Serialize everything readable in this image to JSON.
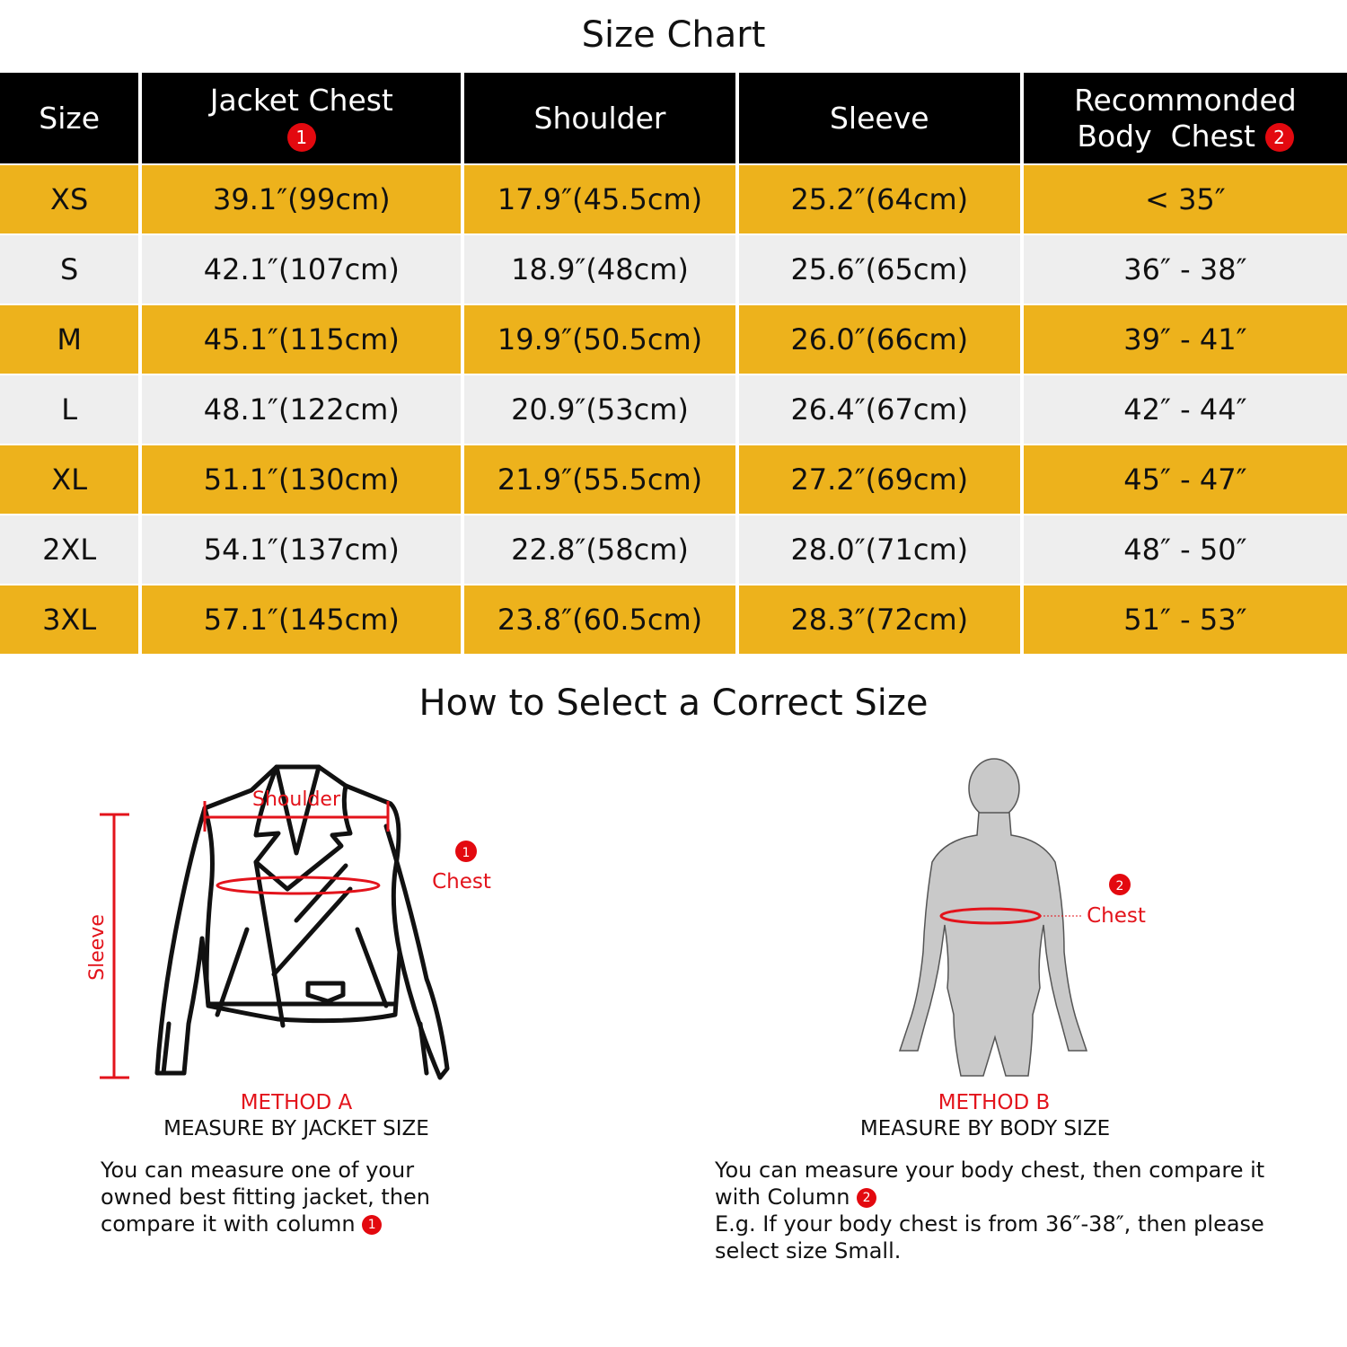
{
  "title": "Size Chart",
  "table": {
    "headers": [
      "Size",
      "Jacket Chest",
      "Shoulder",
      "Sleeve",
      "Recommonded Body  Chest"
    ],
    "header_badges": {
      "jacket_chest": "1",
      "body_chest": "2"
    },
    "rows": [
      [
        "XS",
        "39.1″(99cm)",
        "17.9″(45.5cm)",
        "25.2″(64cm)",
        "< 35″"
      ],
      [
        "S",
        "42.1″(107cm)",
        "18.9″(48cm)",
        "25.6″(65cm)",
        "36″ - 38″"
      ],
      [
        "M",
        "45.1″(115cm)",
        "19.9″(50.5cm)",
        "26.0″(66cm)",
        "39″ - 41″"
      ],
      [
        "L",
        "48.1″(122cm)",
        "20.9″(53cm)",
        "26.4″(67cm)",
        "42″ - 44″"
      ],
      [
        "XL",
        "51.1″(130cm)",
        "21.9″(55.5cm)",
        "27.2″(69cm)",
        "45″ - 47″"
      ],
      [
        "2XL",
        "54.1″(137cm)",
        "22.8″(58cm)",
        "28.0″(71cm)",
        "48″ - 50″"
      ],
      [
        "3XL",
        "57.1″(145cm)",
        "23.8″(60.5cm)",
        "28.3″(72cm)",
        "51″ - 53″"
      ]
    ]
  },
  "how_to": {
    "title": "How to Select a Correct Size",
    "method_a": {
      "label": "METHOD A",
      "subtitle": "MEASURE BY JACKET SIZE",
      "description": "You can measure one of your owned best fitting jacket, then compare it with column",
      "badge": "1",
      "diagram_labels": {
        "shoulder": "Shoulder",
        "sleeve": "Sleeve",
        "chest": "Chest",
        "chest_badge": "1"
      }
    },
    "method_b": {
      "label": "METHOD B",
      "subtitle": "MEASURE BY BODY SIZE",
      "description_1": "You can measure your body chest, then compare it with Column",
      "badge": "2",
      "description_2": "E.g. If your body chest is from 36″-38″, then please select size Small.",
      "diagram_labels": {
        "chest": "Chest",
        "chest_badge": "2"
      }
    }
  },
  "colors": {
    "header_bg": "#000000",
    "row_yellow": "#EDB21C",
    "row_gray": "#EEEEEE",
    "accent_red": "#E3131B"
  }
}
